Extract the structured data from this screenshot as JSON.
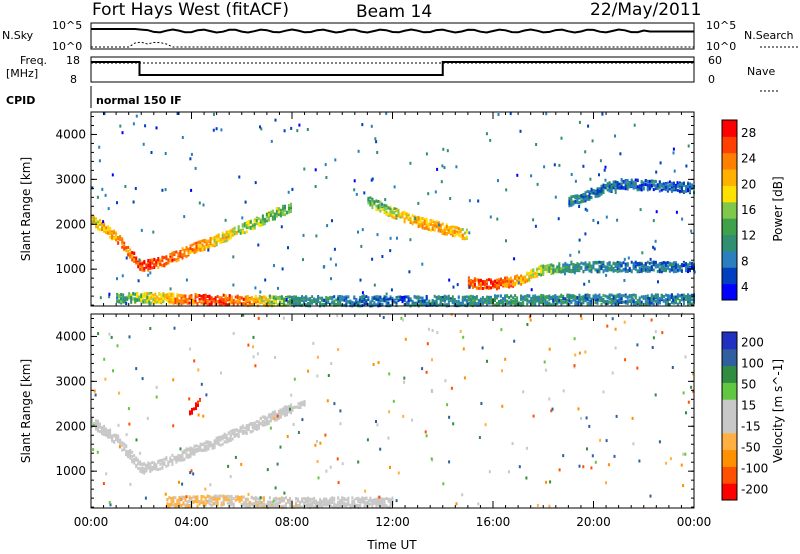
{
  "header": {
    "station": "Fort Hays West (fitACF)",
    "beam": "Beam 14",
    "date": "22/May/2011"
  },
  "summary_panels": {
    "nsky_label": "N.Sky",
    "nsky_ticks": [
      "10^5",
      "10^0"
    ],
    "nsearch_label": "N.Search",
    "nsearch_ticks": [
      "10^5",
      "10^0"
    ],
    "freq_label": "Freq.",
    "freq_unit": "[MHz]",
    "freq_ticks": [
      "18",
      "8"
    ],
    "nave_label": "Nave",
    "nave_ticks": [
      "60",
      "0"
    ],
    "cpid_label": "CPID",
    "cpid_value": "normal 150 IF"
  },
  "chart_data": [
    {
      "type": "heatmap",
      "name": "power",
      "xlabel": "",
      "ylabel": "Slant Range [km]",
      "x_ticks": [
        "00:00",
        "04:00",
        "08:00",
        "12:00",
        "16:00",
        "20:00",
        "00:00"
      ],
      "xlim_hours": [
        0,
        24
      ],
      "y_ticks": [
        "1000",
        "2000",
        "3000",
        "4000"
      ],
      "ylim_km": [
        180,
        4500
      ],
      "colorbar": {
        "label": "Power [dB]",
        "ticks": [
          "28",
          "24",
          "20",
          "16",
          "12",
          "8",
          "4"
        ],
        "range": [
          0,
          30
        ],
        "colors": [
          "#0000ff",
          "#003fbf",
          "#2a7fbf",
          "#2f8f70",
          "#3fa24a",
          "#7fc84a",
          "#ffe000",
          "#ffb000",
          "#ff8000",
          "#ff4000",
          "#ff0000"
        ]
      },
      "features": [
        {
          "desc": "E/F backscatter band",
          "t": [
            0.0,
            1.0,
            2.0,
            3.0,
            4.0,
            5.0,
            6.0,
            7.0,
            8.0
          ],
          "range_km": [
            2100,
            1700,
            1050,
            1200,
            1450,
            1650,
            1900,
            2150,
            2400
          ],
          "power_db": [
            18,
            22,
            26,
            25,
            22,
            20,
            16,
            14,
            12
          ]
        },
        {
          "desc": "evening band",
          "t": [
            11.0,
            12.0,
            13.0,
            14.0,
            15.0
          ],
          "range_km": [
            2500,
            2250,
            2050,
            1900,
            1750
          ],
          "power_db": [
            12,
            16,
            20,
            22,
            18
          ]
        },
        {
          "desc": "near-range ground scatter",
          "t": [
            1.0,
            3.0,
            4.5,
            6.0,
            8.0,
            12.0,
            16.0,
            20.0,
            24.0
          ],
          "range_km": [
            350,
            350,
            320,
            300,
            280,
            280,
            300,
            320,
            320
          ],
          "power_db": [
            10,
            20,
            26,
            24,
            10,
            6,
            10,
            8,
            8
          ]
        },
        {
          "desc": "dawn layer",
          "t": [
            15.0,
            16.0,
            17.0,
            18.0,
            19.0,
            20.0,
            24.0
          ],
          "range_km": [
            700,
            650,
            750,
            1000,
            1050,
            1050,
            1050
          ],
          "power_db": [
            24,
            26,
            22,
            14,
            10,
            8,
            6
          ]
        },
        {
          "desc": "late high-range patch",
          "t": [
            19.0,
            21.0,
            24.0
          ],
          "range_km": [
            2500,
            2900,
            2800
          ],
          "power_db": [
            8,
            6,
            6
          ]
        }
      ]
    },
    {
      "type": "heatmap",
      "name": "velocity",
      "xlabel": "Time UT",
      "ylabel": "Slant Range [km]",
      "x_ticks": [
        "00:00",
        "04:00",
        "08:00",
        "12:00",
        "16:00",
        "20:00",
        "00:00"
      ],
      "xlim_hours": [
        0,
        24
      ],
      "y_ticks": [
        "1000",
        "2000",
        "3000",
        "4000"
      ],
      "ylim_km": [
        180,
        4500
      ],
      "colorbar": {
        "label": "Velocity [m s^-1]",
        "ticks": [
          "200",
          "100",
          "50",
          "15",
          "-15",
          "-50",
          "-100",
          "-200"
        ],
        "range": [
          -250,
          250
        ],
        "colors": [
          "#ff0000",
          "#ff5000",
          "#ff9000",
          "#ffb040",
          "#c8c8c8",
          "#c8c8c8",
          "#60c840",
          "#308c40",
          "#305fa0",
          "#2030c0"
        ]
      },
      "features": [
        {
          "desc": "gray ground scatter band",
          "t": [
            0.0,
            1.0,
            2.0,
            3.0,
            4.0,
            5.0,
            6.0,
            7.0,
            8.0
          ],
          "range_km": [
            2100,
            1700,
            1050,
            1200,
            1450,
            1650,
            1900,
            2150,
            2400
          ],
          "velocity": [
            0,
            0,
            -10,
            -30,
            -20,
            -10,
            0,
            5,
            0
          ]
        },
        {
          "desc": "red patch",
          "t": [
            3.9,
            4.3
          ],
          "range_km": [
            2300,
            2550
          ],
          "velocity": [
            -220,
            -200
          ]
        },
        {
          "desc": "green patch",
          "t": [
            7.5,
            8.5
          ],
          "range_km": [
            2300,
            2500
          ],
          "velocity": [
            30,
            40
          ]
        },
        {
          "desc": "near range orange",
          "t": [
            3.0,
            5.0,
            7.0,
            12.0
          ],
          "range_km": [
            300,
            350,
            300,
            300
          ],
          "velocity": [
            -60,
            -50,
            -40,
            -30
          ]
        }
      ]
    }
  ]
}
